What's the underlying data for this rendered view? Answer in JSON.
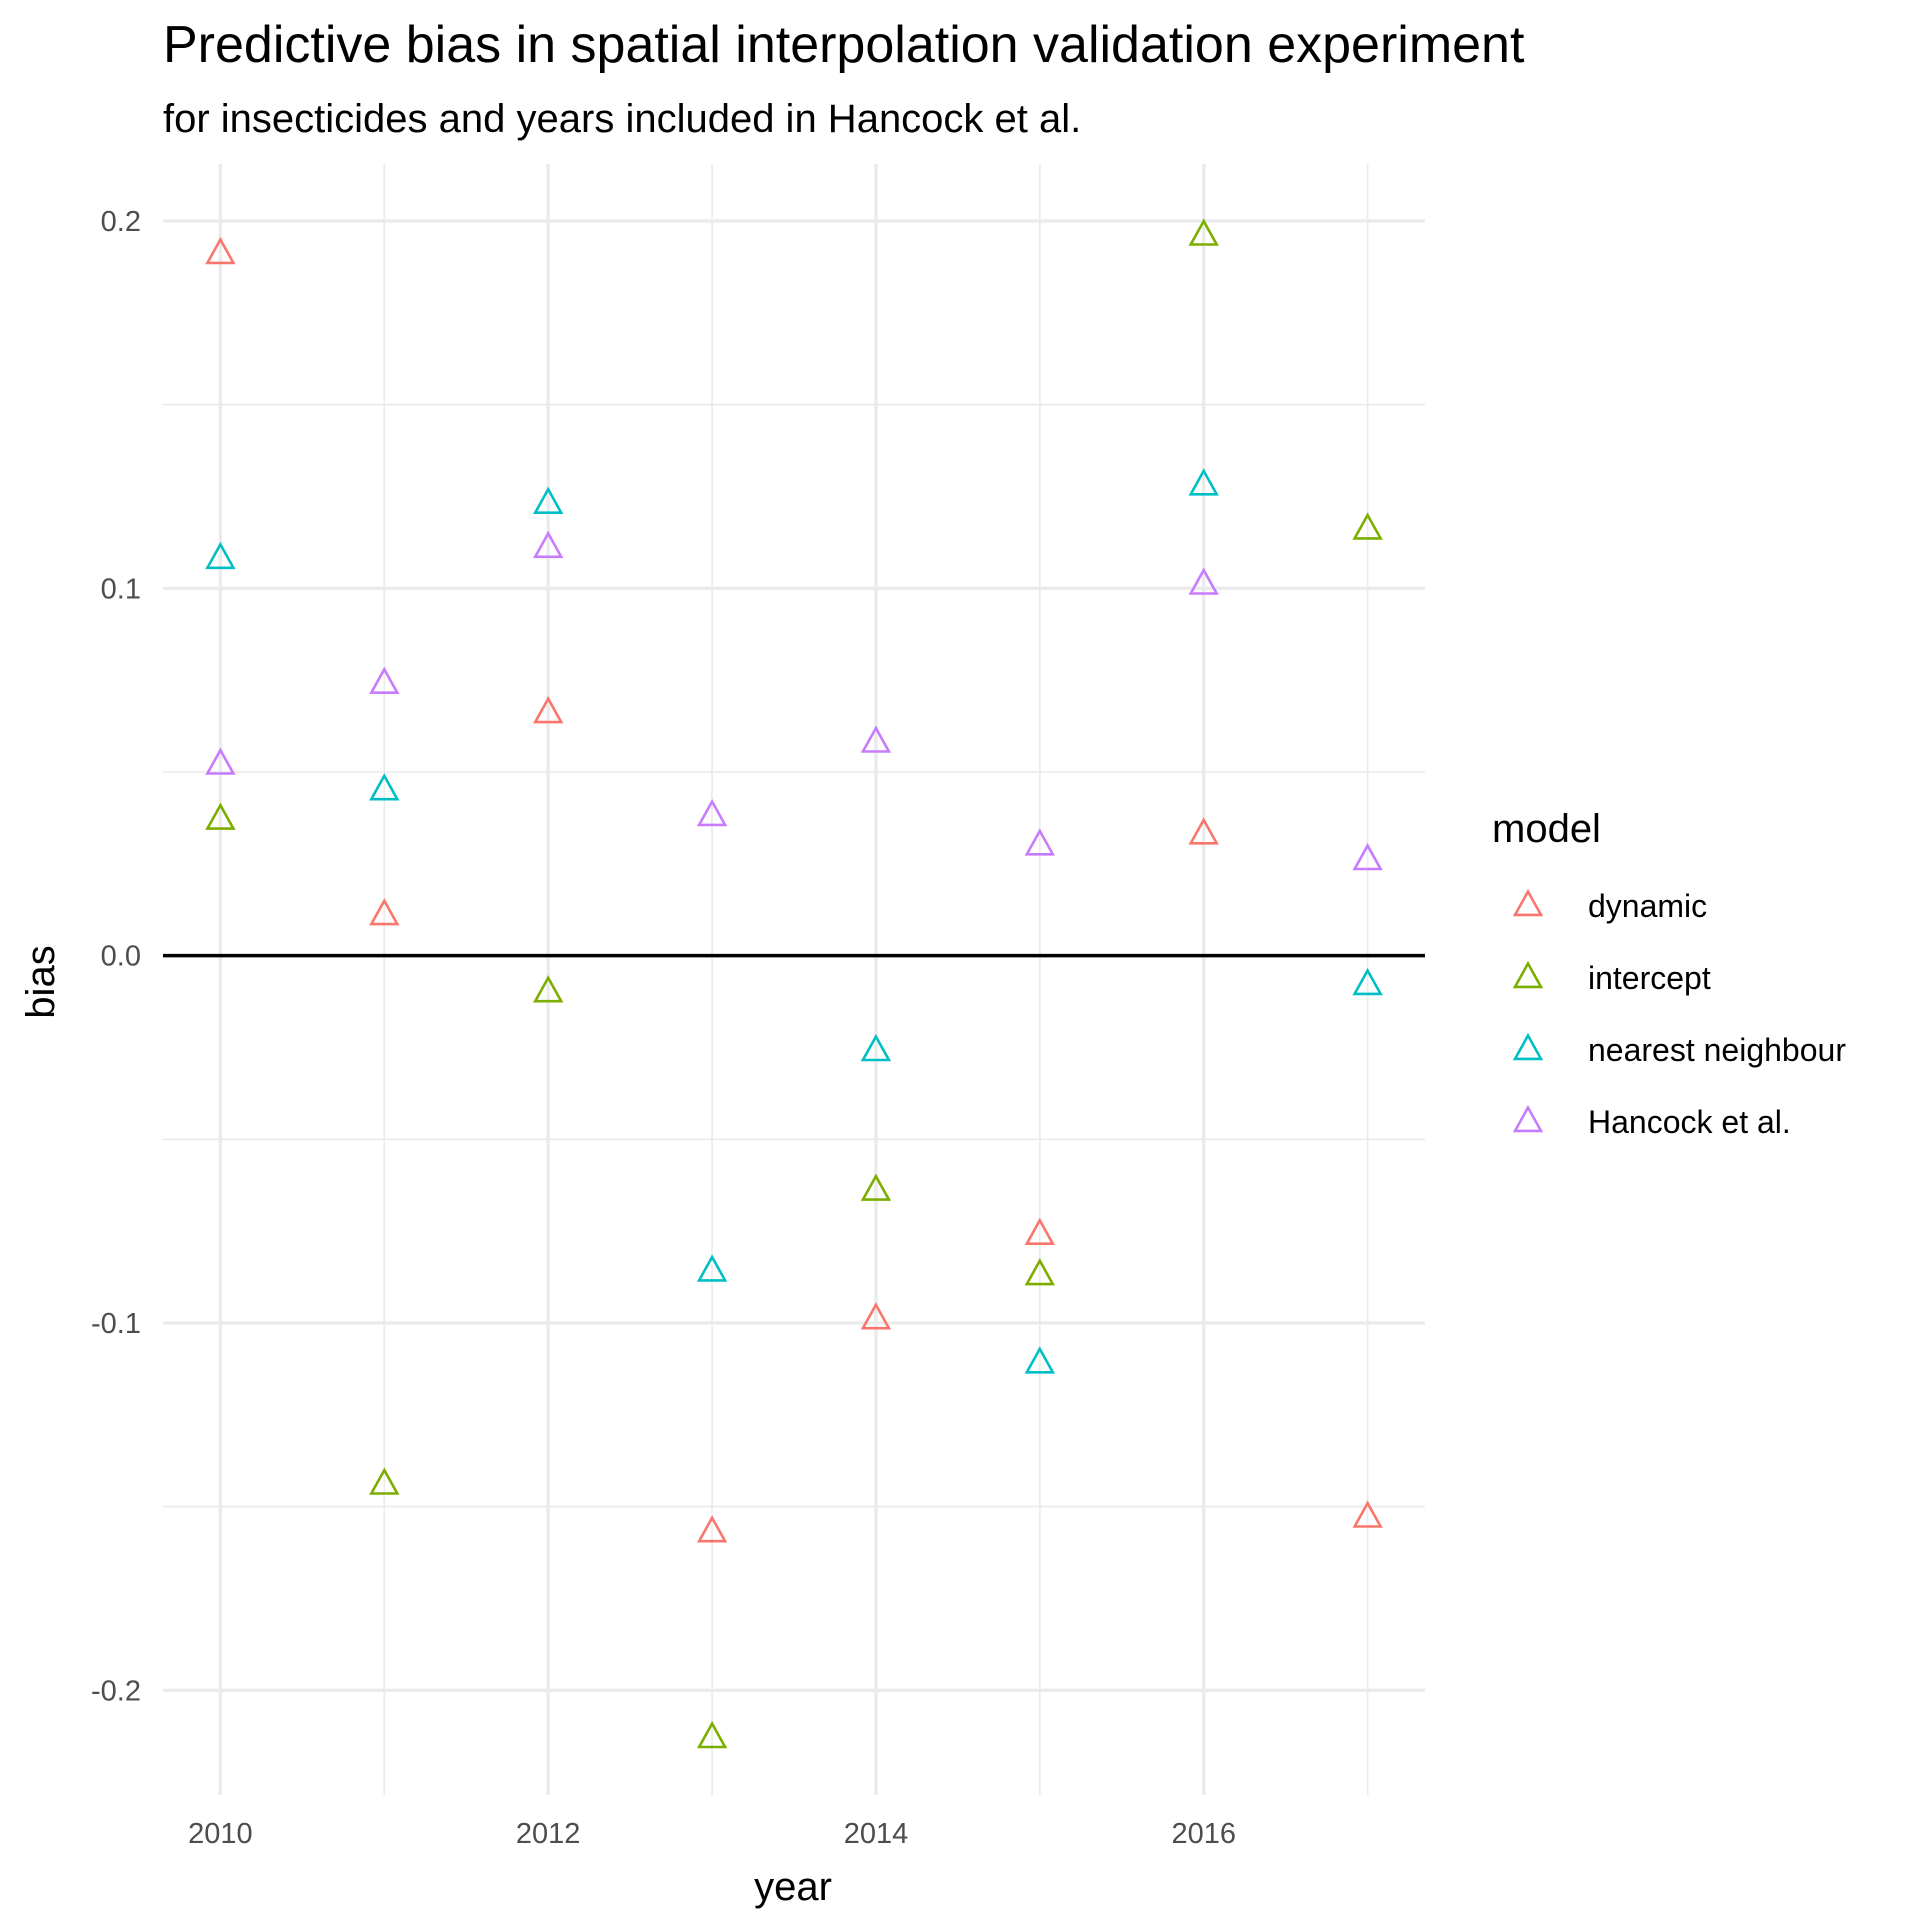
{
  "chart_data": {
    "type": "scatter",
    "title": "Predictive bias in spatial interpolation validation experiment",
    "subtitle": "for insecticides and years included in Hancock et al.",
    "xlabel": "year",
    "ylabel": "bias",
    "xlim": [
      2009.65,
      2017.35
    ],
    "ylim": [
      -0.2285,
      0.2155
    ],
    "x_ticks": [
      2010,
      2012,
      2014,
      2016
    ],
    "x_tick_labels": [
      "2010",
      "2012",
      "2014",
      "2016"
    ],
    "y_ticks": [
      -0.2,
      -0.1,
      0.0,
      0.1,
      0.2
    ],
    "y_tick_labels": [
      "-0.2",
      "-0.1",
      "0.0",
      "0.1",
      "0.2"
    ],
    "grid": true,
    "reference_line_y": 0,
    "marker": "open-triangle",
    "legend": {
      "title": "model",
      "placement": "right"
    },
    "x": [
      2010,
      2011,
      2012,
      2013,
      2014,
      2015,
      2016,
      2017
    ],
    "series": [
      {
        "name": "dynamic",
        "color": "#F8766D",
        "values": [
          0.191,
          0.011,
          0.066,
          -0.157,
          -0.099,
          -0.076,
          0.033,
          -0.153
        ]
      },
      {
        "name": "intercept",
        "color": "#7CAE00",
        "values": [
          0.037,
          -0.144,
          -0.01,
          -0.213,
          -0.064,
          -0.087,
          0.196,
          0.116
        ]
      },
      {
        "name": "nearest neighbour",
        "color": "#00BFC4",
        "values": [
          0.108,
          0.045,
          0.123,
          -0.086,
          -0.026,
          -0.111,
          0.128,
          -0.008
        ]
      },
      {
        "name": "Hancock et al.",
        "color": "#C77CFF",
        "values": [
          0.052,
          0.074,
          0.111,
          0.038,
          0.058,
          0.03,
          0.101,
          0.026
        ]
      }
    ]
  }
}
